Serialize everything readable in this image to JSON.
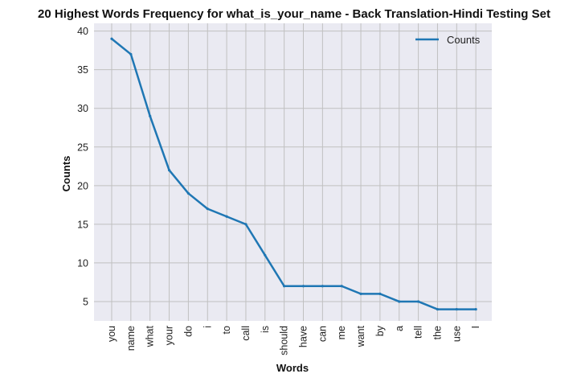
{
  "chart_data": {
    "type": "line",
    "title": "20 Highest Words Frequency for what_is_your_name - Back Translation-Hindi Testing Set",
    "xlabel": "Words",
    "ylabel": "Counts",
    "categories": [
      "you",
      "name",
      "what",
      "your",
      "do",
      "i",
      "to",
      "call",
      "is",
      "should",
      "have",
      "can",
      "me",
      "want",
      "by",
      "a",
      "tell",
      "the",
      "use",
      "I"
    ],
    "series": [
      {
        "name": "Counts",
        "values": [
          39,
          37,
          29,
          22,
          19,
          17,
          16,
          15,
          11,
          7,
          7,
          7,
          7,
          6,
          6,
          5,
          5,
          4,
          4,
          4
        ]
      }
    ],
    "ylim": [
      2.5,
      41
    ],
    "yticks": [
      5,
      10,
      15,
      20,
      25,
      30,
      35,
      40
    ],
    "grid": true,
    "legend": "top-right",
    "colors": {
      "line": "#1f77b4",
      "plot_bg": "#eaeaf2",
      "grid": "#c0c0c0"
    }
  }
}
